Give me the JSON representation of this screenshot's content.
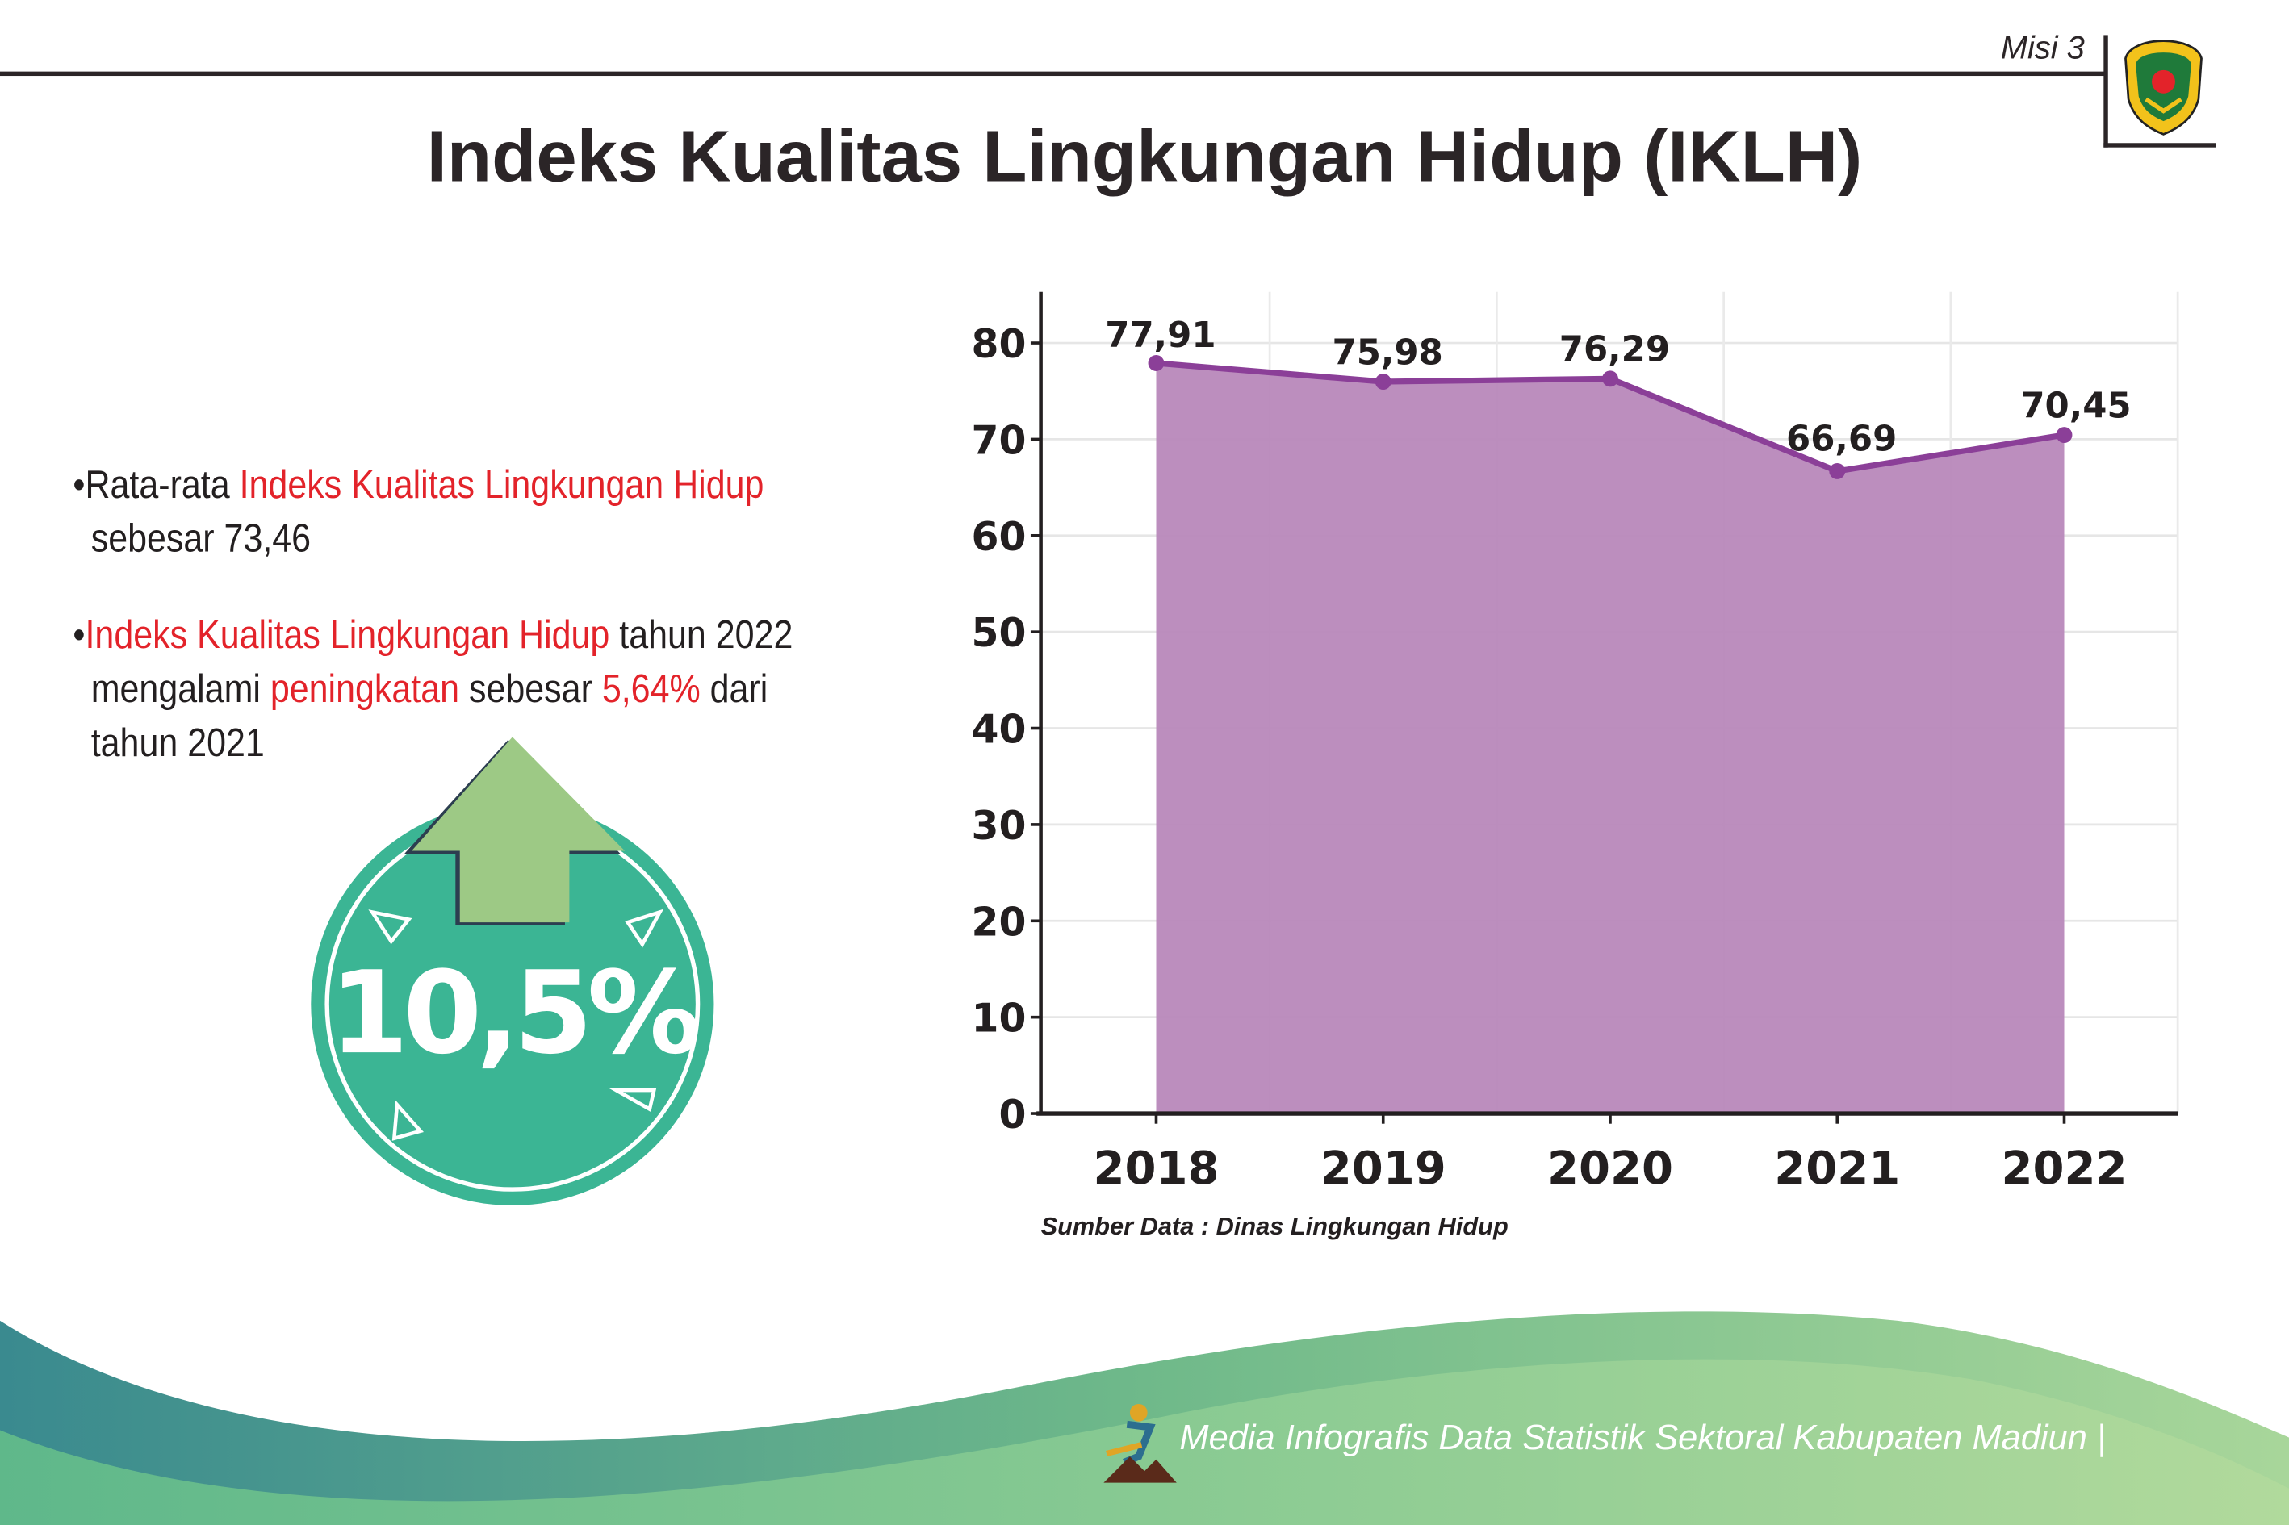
{
  "header": {
    "mission_label": "Misi 3",
    "title": "Indeks Kualitas Lingkungan Hidup (IKLH)"
  },
  "bullets": [
    {
      "parts": [
        "•Rata-rata ",
        "Indeks Kualitas Lingkungan Hidup"
      ],
      "line2": "sebesar 73,46"
    },
    {
      "parts": [
        "•",
        "Indeks Kualitas Lingkungan Hidup",
        " tahun 2022"
      ],
      "line2_parts": [
        "mengalami ",
        "peningkatan",
        " sebesar ",
        "5,64%",
        " dari"
      ],
      "line3": "tahun 2021"
    }
  ],
  "badge": {
    "value": "10,5%",
    "icon": "arrow-up-icon",
    "color": "#3bb594",
    "arrow_color": "#9dc985"
  },
  "chart_data": {
    "type": "area",
    "categories": [
      "2018",
      "2019",
      "2020",
      "2021",
      "2022"
    ],
    "values": [
      77.91,
      75.98,
      76.29,
      66.69,
      70.45
    ],
    "data_labels": [
      "77,91",
      "75,98",
      "76,29",
      "66,69",
      "70,45"
    ],
    "yticks": [
      "0",
      "10",
      "20",
      "30",
      "40",
      "50",
      "60",
      "70",
      "80"
    ],
    "ylim": [
      0,
      85
    ],
    "grid": true,
    "fill_color": "#b888ba",
    "line_color": "#8b3f98"
  },
  "source": "Sumber Data : Dinas Lingkungan Hidup",
  "footer": {
    "text": "Media Infografis Data Statistik Sektoral Kabupaten Madiun |",
    "colors": [
      "#3a8a8f",
      "#a8d69a"
    ]
  }
}
